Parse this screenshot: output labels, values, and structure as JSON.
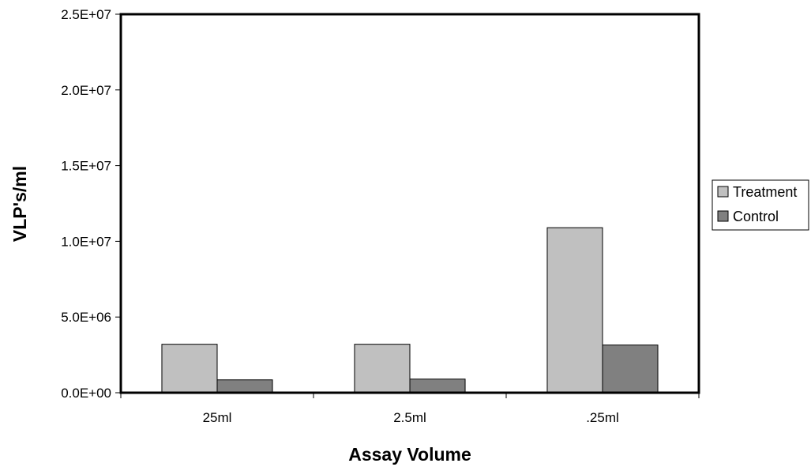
{
  "chart_data": {
    "type": "bar",
    "title": "",
    "xlabel": "Assay Volume",
    "ylabel": "VLP's/ml",
    "categories": [
      "25ml",
      "2.5ml",
      ".25ml"
    ],
    "series": [
      {
        "name": "Treatment",
        "values": [
          3200000,
          3200000,
          10900000
        ],
        "color": "#c0c0c0"
      },
      {
        "name": "Control",
        "values": [
          850000,
          900000,
          3150000
        ],
        "color": "#808080"
      }
    ],
    "ylim": [
      0,
      25000000
    ],
    "yticks": [
      0,
      5000000,
      10000000,
      15000000,
      20000000,
      25000000
    ],
    "ytick_labels": [
      "0.0E+00",
      "5.0E+06",
      "1.0E+07",
      "1.5E+07",
      "2.0E+07",
      "2.5E+07"
    ],
    "grid": false,
    "legend_position": "right"
  }
}
